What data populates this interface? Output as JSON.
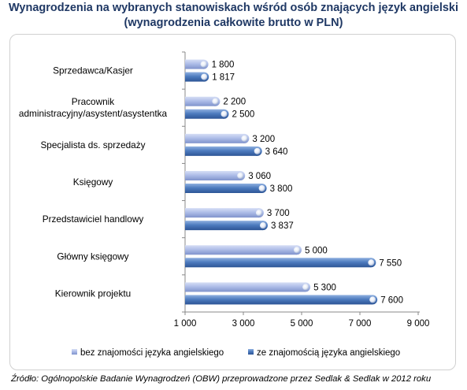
{
  "header": {
    "title_line1": "Wynagrodzenia na wybranych stanowiskach wśród osób znających język angielski",
    "title_line2": "(wynagrodzenia całkowite brutto w PLN)"
  },
  "source": "Źródło: Ogólnopolskie Badanie Wynagrodzeń (OBW) przeprowadzone przez Sedlak & Sedlak w 2012 roku",
  "colors": {
    "series_without": "#a9b8e4",
    "series_with": "#4e7cbf"
  },
  "chart_data": {
    "type": "bar",
    "orientation": "horizontal",
    "categories": [
      [
        "Sprzedawca/Kasjer"
      ],
      [
        "Pracownik",
        "administracyjny/asystent/asystentka"
      ],
      [
        "Specjalista ds. sprzedaży"
      ],
      [
        "Księgowy"
      ],
      [
        "Przedstawiciel handlowy"
      ],
      [
        "Główny księgowy"
      ],
      [
        "Kierownik projektu"
      ]
    ],
    "series": [
      {
        "name": "bez znajomości języka angielskiego",
        "values": [
          1800,
          2200,
          3200,
          3060,
          3700,
          5000,
          5300
        ],
        "labels": [
          "1 800",
          "2 200",
          "3 200",
          "3 060",
          "3 700",
          "5 000",
          "5 300"
        ]
      },
      {
        "name": "ze znajomością języka angielskiego",
        "values": [
          1817,
          2500,
          3640,
          3800,
          3837,
          7550,
          7600
        ],
        "labels": [
          "1 817",
          "2 500",
          "3 640",
          "3 800",
          "3 837",
          "7 550",
          "7 600"
        ]
      }
    ],
    "xlim": [
      1000,
      9000
    ],
    "xticks": [
      1000,
      3000,
      5000,
      7000,
      9000
    ],
    "xtick_labels": [
      "1 000",
      "3 000",
      "5 000",
      "7 000",
      "9 000"
    ],
    "grid": false,
    "legend_position": "bottom"
  }
}
